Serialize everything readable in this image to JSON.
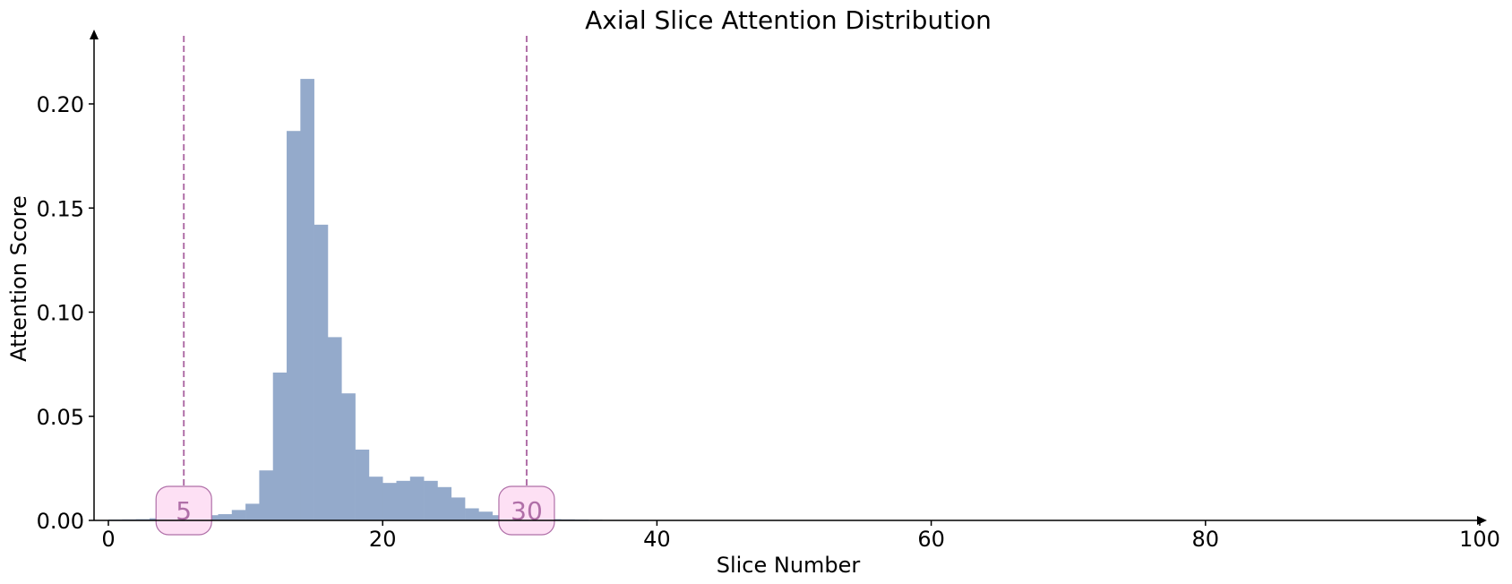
{
  "chart_data": {
    "type": "bar",
    "title": "Axial Slice Attention Distribution",
    "xlabel": "Slice Number",
    "ylabel": "Attention Score",
    "xlim": [
      -1,
      100
    ],
    "ylim": [
      0,
      0.23
    ],
    "xticks": [
      0,
      20,
      40,
      60,
      80,
      100
    ],
    "yticks": [
      0.0,
      0.05,
      0.1,
      0.15,
      0.2
    ],
    "ytick_labels": [
      "0.00",
      "0.05",
      "0.10",
      "0.15",
      "0.20"
    ],
    "grid": false,
    "bar_color": "#94aacb",
    "x": [
      0,
      1,
      2,
      3,
      4,
      5,
      6,
      7,
      8,
      9,
      10,
      11,
      12,
      13,
      14,
      15,
      16,
      17,
      18,
      19,
      20,
      21,
      22,
      23,
      24,
      25,
      26,
      27,
      28,
      29,
      30,
      31,
      32,
      33,
      34,
      35
    ],
    "values": [
      0.0004,
      0.0005,
      0.0006,
      0.001,
      0.0015,
      0.002,
      0.002,
      0.0025,
      0.003,
      0.005,
      0.008,
      0.024,
      0.071,
      0.187,
      0.212,
      0.142,
      0.088,
      0.061,
      0.034,
      0.021,
      0.018,
      0.019,
      0.021,
      0.019,
      0.016,
      0.011,
      0.0058,
      0.0042,
      0.0025,
      0.0018,
      0.001,
      0.0008,
      0.0006,
      0.0005,
      0.0004,
      0.0003
    ],
    "markers": [
      {
        "x": 5.5,
        "label": "5"
      },
      {
        "x": 30.5,
        "label": "30"
      }
    ],
    "marker_color": "#b06fa8",
    "marker_fill": "#fde0f4"
  }
}
